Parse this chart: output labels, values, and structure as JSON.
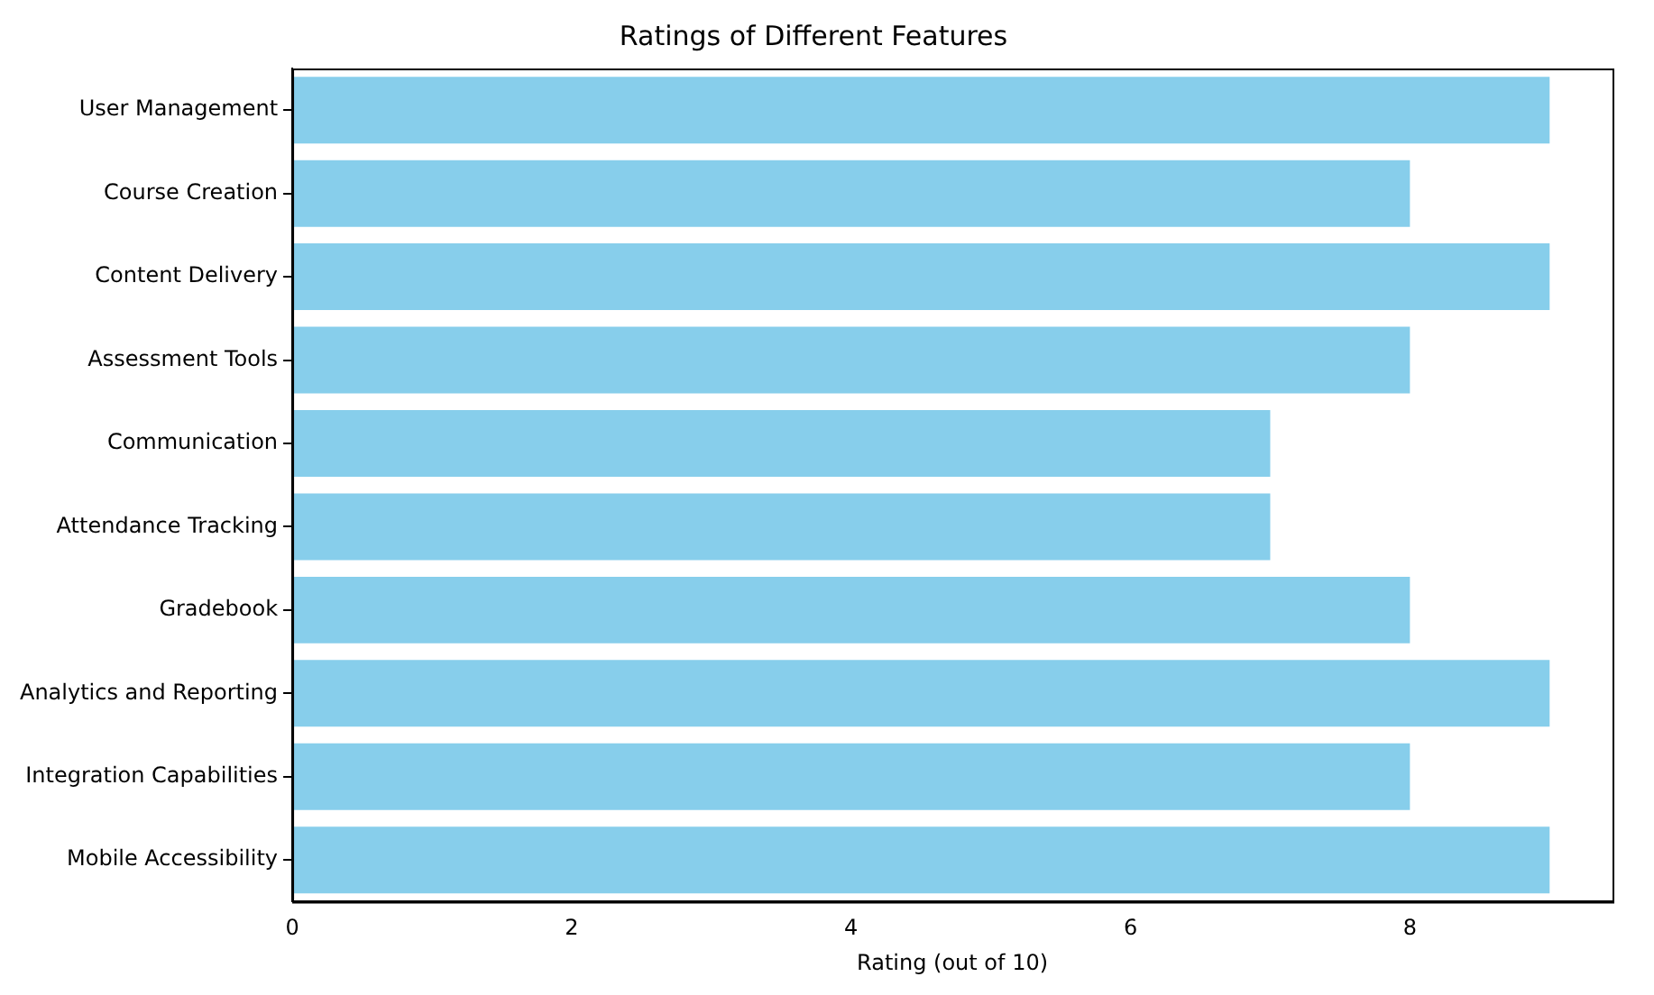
{
  "chart_data": {
    "type": "bar",
    "orientation": "horizontal",
    "title": "Ratings of Different Features",
    "xlabel": "Rating (out of 10)",
    "categories": [
      "User Management",
      "Course Creation",
      "Content Delivery",
      "Assessment Tools",
      "Communication",
      "Attendance Tracking",
      "Gradebook",
      "Analytics and Reporting",
      "Integration Capabilities",
      "Mobile Accessibility"
    ],
    "values": [
      9,
      8,
      9,
      8,
      7,
      7,
      8,
      9,
      8,
      9
    ],
    "color": "#87ceeb",
    "xlim": [
      0,
      9.45
    ],
    "xticks": [
      0,
      2,
      4,
      6,
      8
    ],
    "grid": false,
    "legend": false
  }
}
